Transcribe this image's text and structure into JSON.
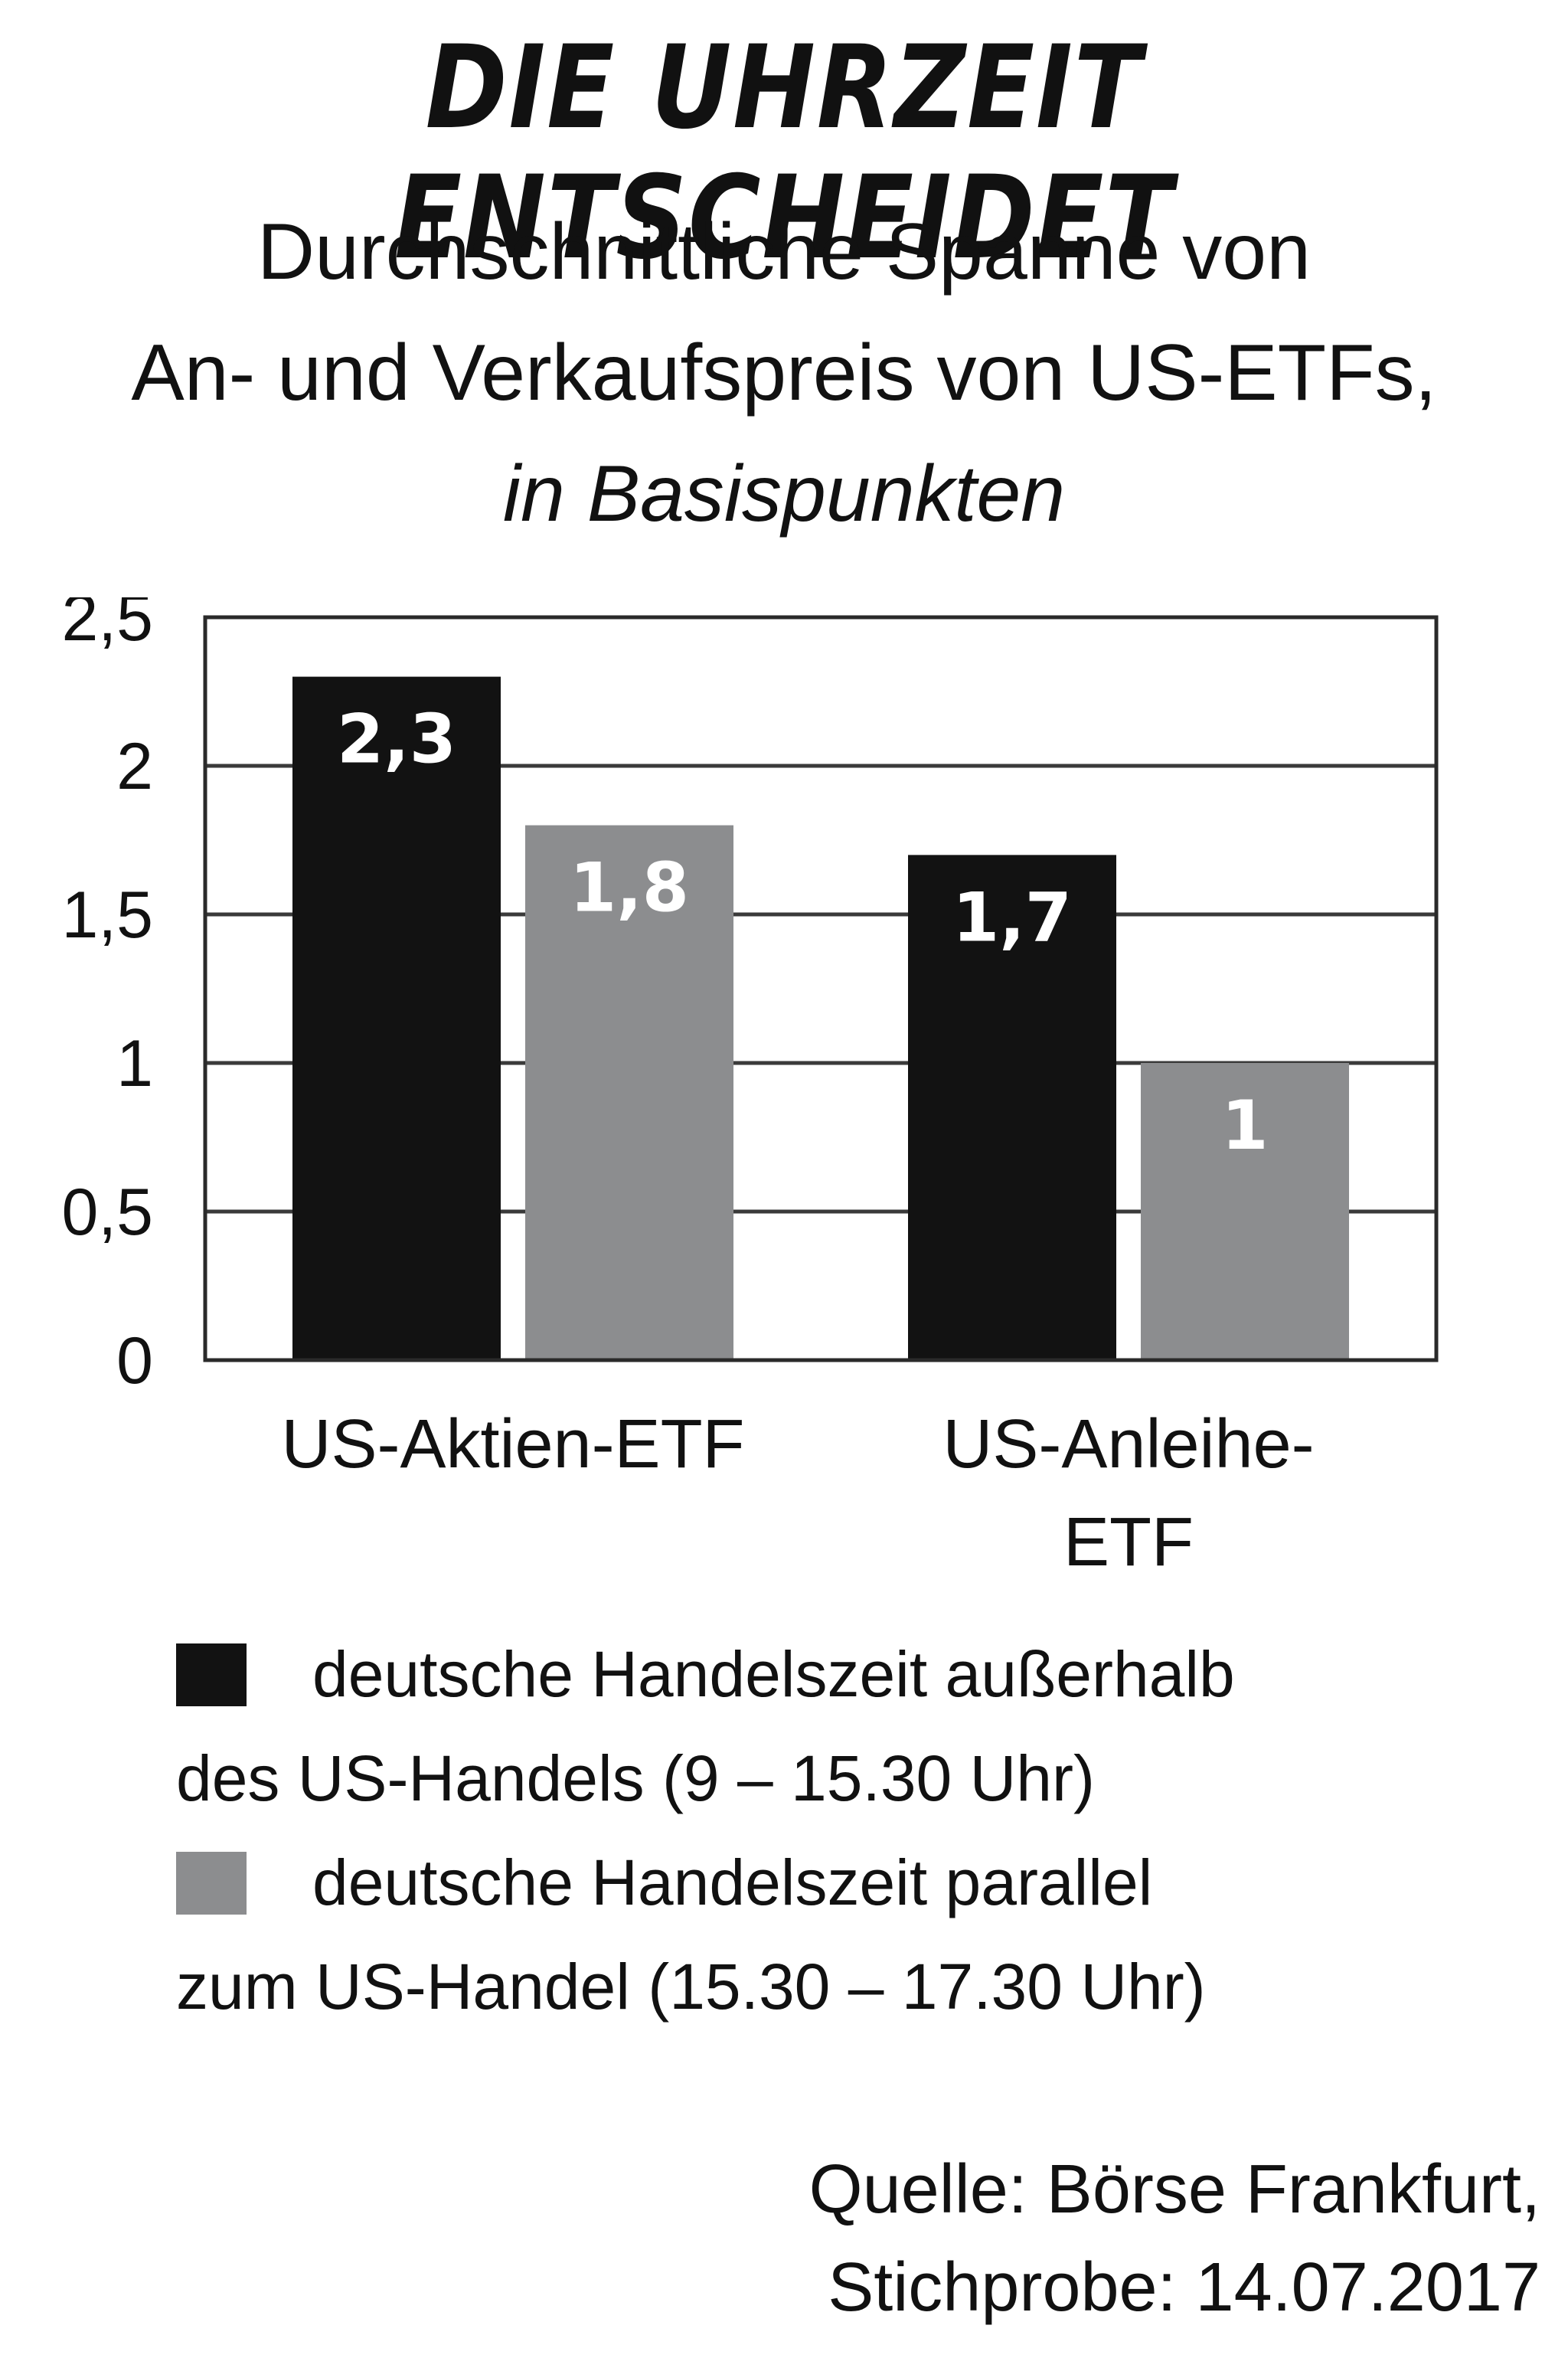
{
  "chart_data": {
    "type": "bar",
    "title": "DIE UHRZEIT ENTSCHEIDET",
    "subtitle_lines": [
      "Durchschnittliche Spanne von",
      "An- und Verkaufspreis von US-ETFs,"
    ],
    "unit_line": "in Basispunkten",
    "categories": [
      [
        "US-Aktien-ETF"
      ],
      [
        "US-Anleihe-",
        "ETF"
      ]
    ],
    "series": [
      {
        "name_lines": [
          "deutsche Handelszeit außerhalb",
          "des US-Handels (9 – 15.30 Uhr)"
        ],
        "color": "#121212",
        "values": [
          2.3,
          1.7
        ],
        "labels": [
          "2,3",
          "1,7"
        ]
      },
      {
        "name_lines": [
          "deutsche Handelszeit parallel",
          "zum US-Handel (15.30 – 17.30 Uhr)"
        ],
        "color": "#8c8d8f",
        "values": [
          1.8,
          1.0
        ],
        "labels": [
          "1,8",
          "1"
        ]
      }
    ],
    "yticks": [
      0,
      0.5,
      1,
      1.5,
      2,
      2.5
    ],
    "ytick_labels": [
      "0",
      "0,5",
      "1",
      "1,5",
      "2",
      "2,5"
    ],
    "ylim": [
      0,
      2.5
    ],
    "grid": true,
    "legend_position": "bottom"
  },
  "source_lines": [
    "Quelle: Börse Frankfurt,",
    "Stichprobe: 14.07.2017"
  ]
}
